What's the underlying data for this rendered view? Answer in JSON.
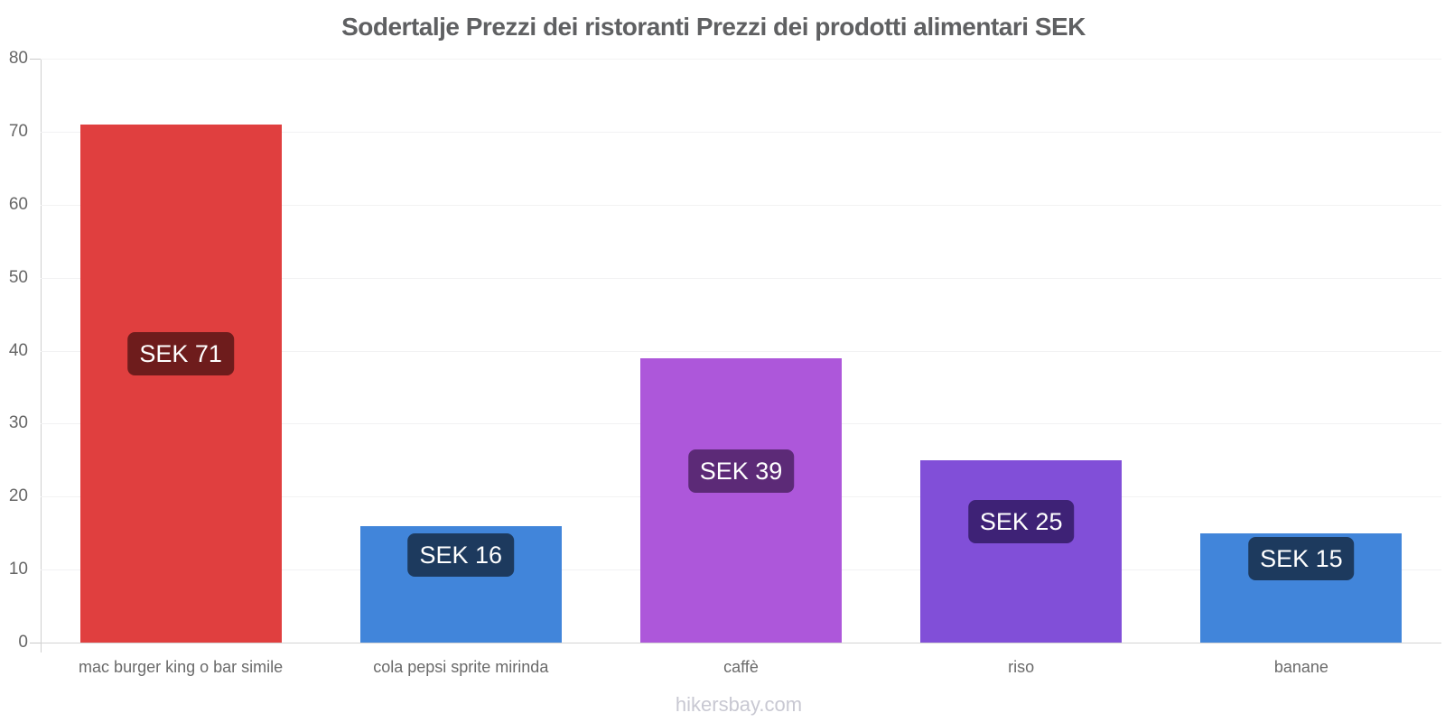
{
  "chart_data": {
    "type": "bar",
    "title": "Sodertalje Prezzi dei ristoranti Prezzi dei prodotti alimentari SEK",
    "currency": "SEK",
    "categories": [
      "mac burger king o bar simile",
      "cola pepsi sprite mirinda",
      "caffè",
      "riso",
      "banane"
    ],
    "values": [
      71,
      16,
      39,
      25,
      15
    ],
    "value_labels": [
      "SEK 71",
      "SEK 16",
      "SEK 39",
      "SEK 25",
      "SEK 15"
    ],
    "bar_colors": [
      "#df3737",
      "#3980d9",
      "#aa50d8",
      "#7c48d6",
      "#3980d9"
    ],
    "badge_colors": [
      "#6e1c1c",
      "#1d3a5e",
      "#5c2a77",
      "#3e2276",
      "#1d3a5e"
    ],
    "yticks": [
      0,
      10,
      20,
      30,
      40,
      50,
      60,
      70,
      80
    ],
    "ylim": [
      0,
      80
    ],
    "xlabel": "",
    "ylabel": "",
    "grid": true,
    "legend": false
  },
  "footer": {
    "watermark": "hikersbay.com"
  },
  "colors": {
    "background": "#ffffff",
    "title_text": "#5f6062",
    "axis_label_text": "#666666",
    "category_label_text": "#6a6a6a",
    "gridline": "#f2f2f3",
    "axis_line": "#cfcfcf",
    "badge_text": "#ffffff",
    "watermark_text": "#c8c8d2"
  }
}
